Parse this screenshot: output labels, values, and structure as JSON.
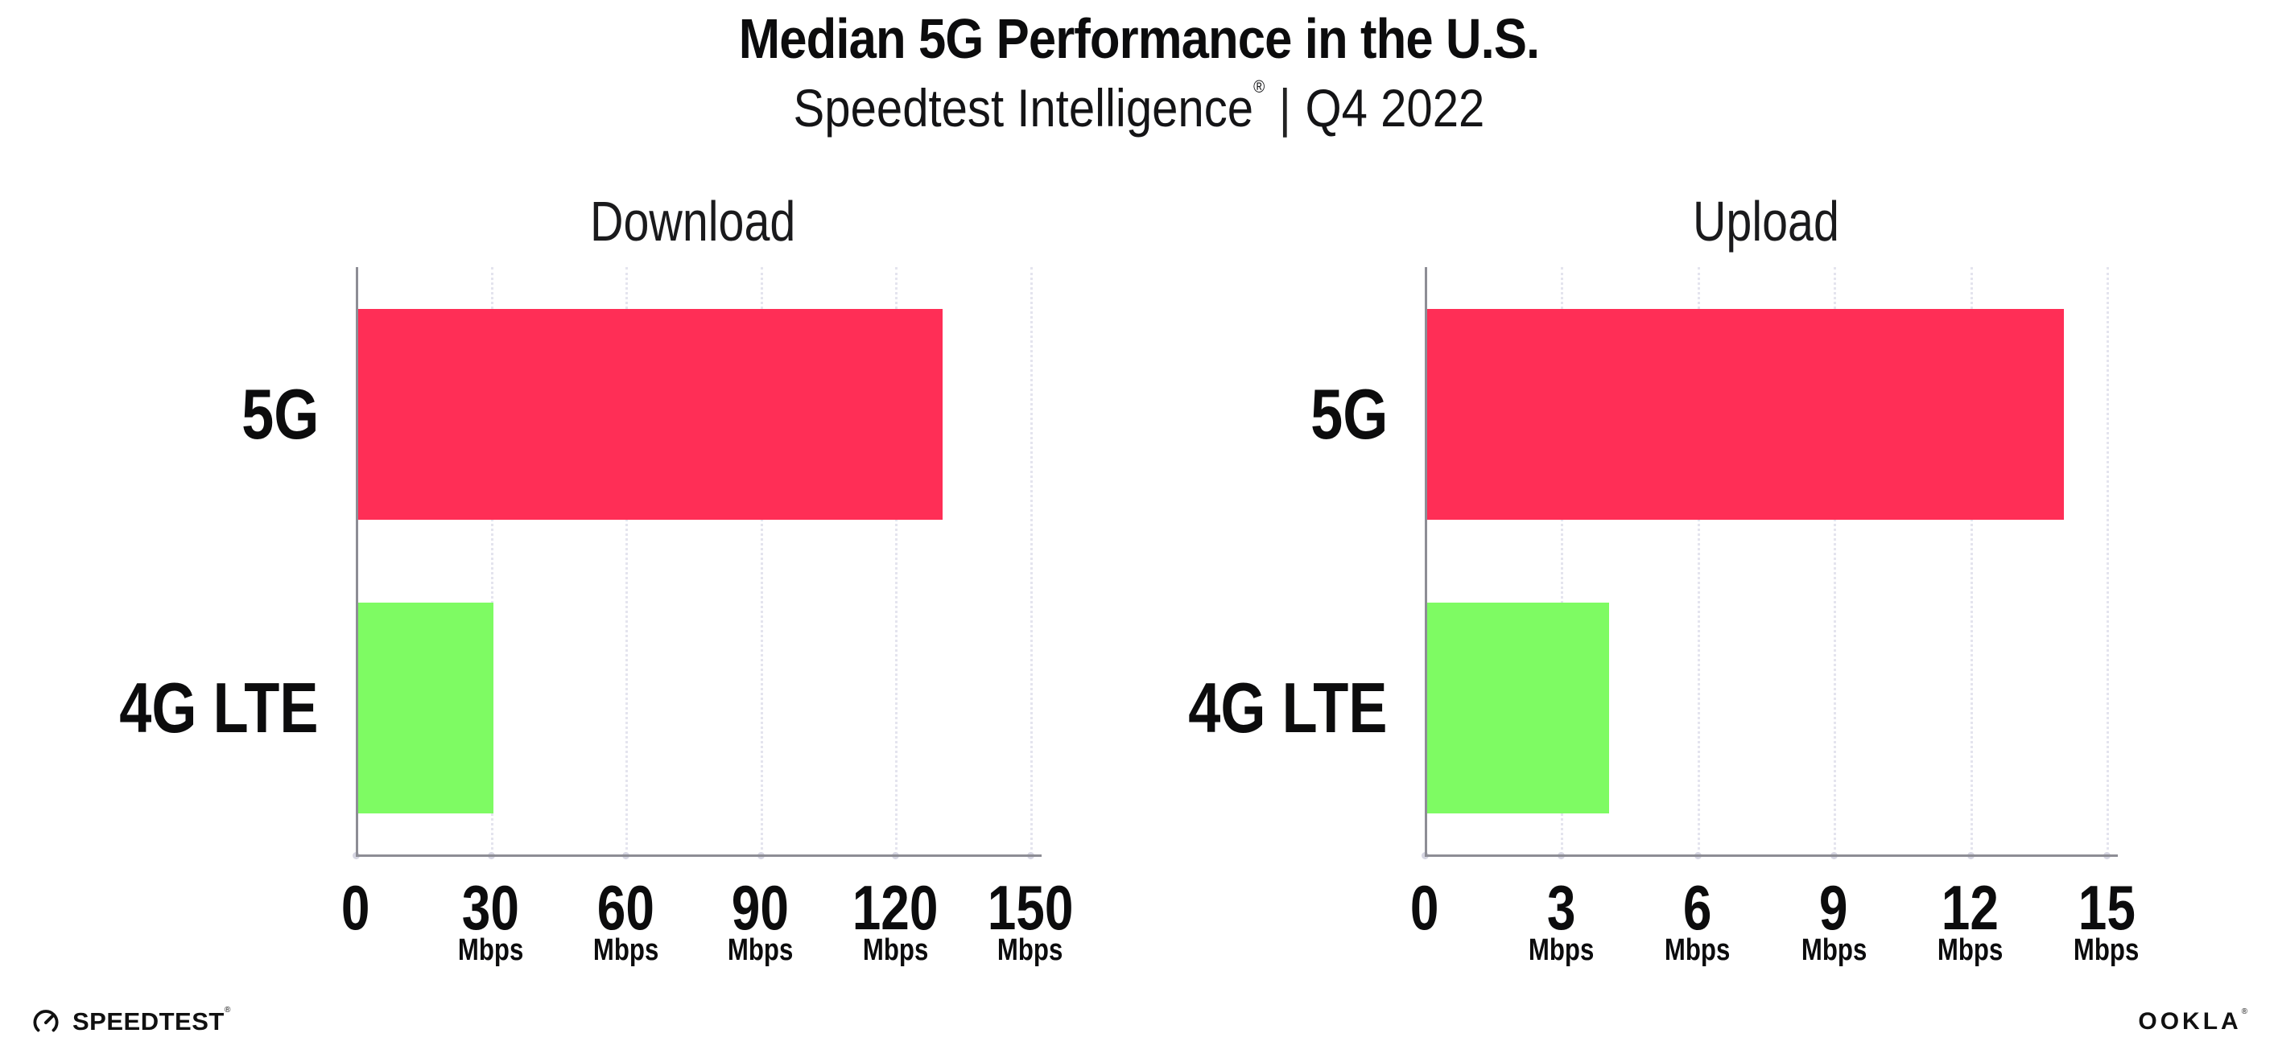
{
  "title": "Median 5G Performance in the U.S.",
  "subtitle": {
    "brand": "Speedtest Intelligence",
    "registered": "®",
    "divider": "|",
    "period": "Q4 2022"
  },
  "chart_data": [
    {
      "type": "bar",
      "orientation": "horizontal",
      "title": "Download",
      "categories": [
        "5G",
        "4G LTE"
      ],
      "values": [
        130,
        30
      ],
      "unit": "Mbps",
      "xlim": [
        0,
        150
      ],
      "xticks": [
        0,
        30,
        60,
        90,
        120,
        150
      ],
      "grid": "dotted vertical gridline at each labeled tick, none at 0",
      "legend": "none",
      "bar_colors": [
        "#ff2e56",
        "#7efb63"
      ]
    },
    {
      "type": "bar",
      "orientation": "horizontal",
      "title": "Upload",
      "categories": [
        "5G",
        "4G LTE"
      ],
      "values": [
        14,
        4
      ],
      "unit": "Mbps",
      "xlim": [
        0,
        15
      ],
      "xticks": [
        0,
        3,
        6,
        9,
        12,
        15
      ],
      "grid": "dotted vertical gridline at each labeled tick, none at 0",
      "legend": "none",
      "bar_colors": [
        "#ff2e56",
        "#7efb63"
      ]
    }
  ],
  "colors": {
    "bar_5g": "#ff2e56",
    "bar_4g_lte": "#7efb63",
    "axis_line": "#8d8d95",
    "gridline": "#e4e4ee",
    "text": "#0c0c0d",
    "background": "#ffffff"
  },
  "footer": {
    "speedtest_label": "SPEEDTEST",
    "speedtest_mark": "®",
    "gauge_icon": "speedtest-gauge-icon",
    "ookla_label": "OOKLA",
    "ookla_mark": "®"
  }
}
